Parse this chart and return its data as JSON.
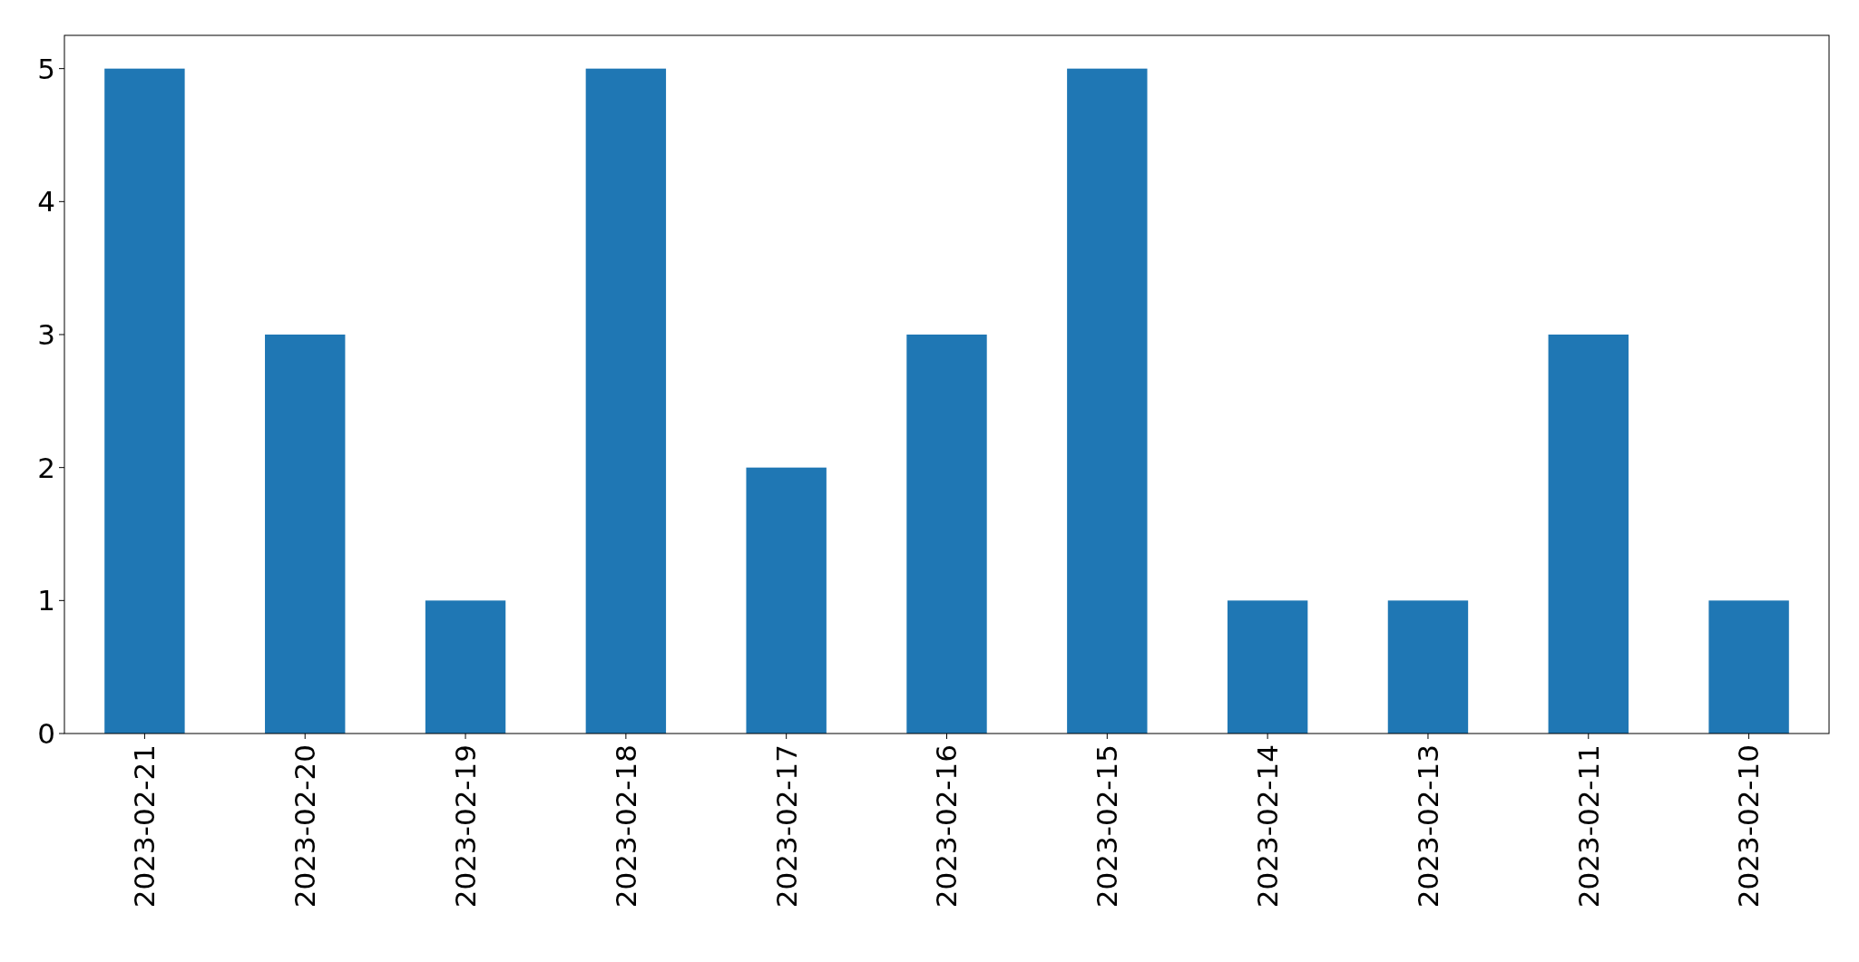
{
  "chart_data": {
    "type": "bar",
    "categories": [
      "2023-02-21",
      "2023-02-20",
      "2023-02-19",
      "2023-02-18",
      "2023-02-17",
      "2023-02-16",
      "2023-02-15",
      "2023-02-14",
      "2023-02-13",
      "2023-02-11",
      "2023-02-10"
    ],
    "values": [
      5,
      3,
      1,
      5,
      2,
      3,
      5,
      1,
      1,
      3,
      1
    ],
    "color": "#1f77b4",
    "ylim": [
      0,
      5.25
    ],
    "yticks": [
      0,
      1,
      2,
      3,
      4,
      5
    ]
  }
}
